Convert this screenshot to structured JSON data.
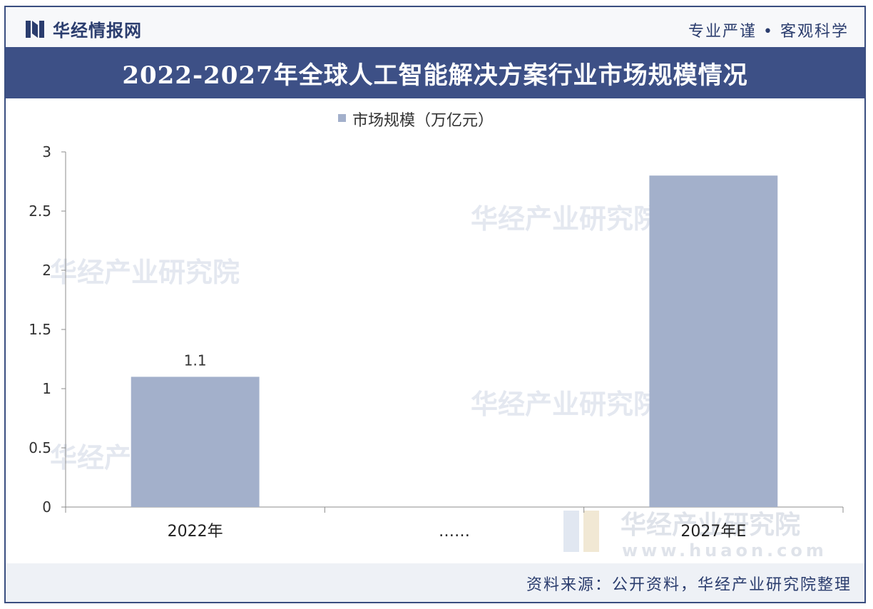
{
  "header": {
    "brand": "华经情报网",
    "slogan": "专业严谨 • 客观科学"
  },
  "title": "2022-2027年全球人工智能解决方案行业市场规模情况",
  "watermark": {
    "name": "华经产业研究院",
    "url": "www.huaon.com"
  },
  "chart_data": {
    "type": "bar",
    "categories": [
      "2022年",
      "……",
      "2027年E"
    ],
    "series": [
      {
        "name": "市场规模（万亿元）",
        "values": [
          1.1,
          null,
          2.8
        ],
        "color": "#a3b0cb"
      }
    ],
    "data_labels": [
      "1.1",
      "",
      ""
    ],
    "ylim": [
      0,
      3
    ],
    "yticks": [
      "0",
      "0.5",
      "1",
      "1.5",
      "2",
      "2.5",
      "3"
    ],
    "legend_position": "top-center",
    "grid": false
  },
  "footer": {
    "source": "资料来源：公开资料，华经产业研究院整理"
  },
  "colors": {
    "brand": "#2b3d6e",
    "title_band": "#3d5086",
    "bar": "#a3b0cb"
  }
}
